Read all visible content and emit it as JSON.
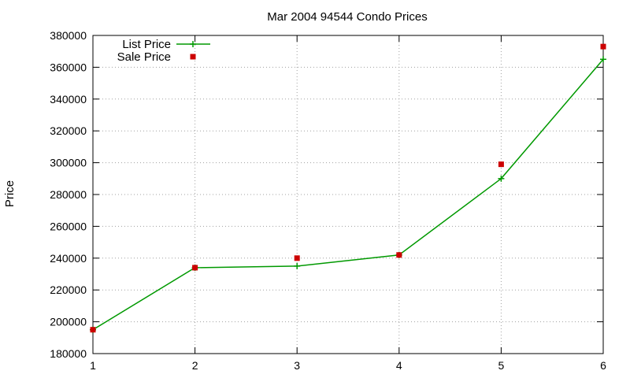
{
  "chart_data": {
    "type": "line",
    "title": "Mar 2004 94544 Condo Prices",
    "xlabel": "",
    "ylabel": "Price",
    "xlim": [
      1,
      6
    ],
    "ylim": [
      180000,
      380000
    ],
    "x_ticks": [
      "1",
      "2",
      "3",
      "4",
      "5",
      "6"
    ],
    "y_ticks": [
      "180000",
      "200000",
      "220000",
      "240000",
      "260000",
      "280000",
      "300000",
      "320000",
      "340000",
      "360000",
      "380000"
    ],
    "grid": true,
    "legend_position": "top-left",
    "series": [
      {
        "name": "List Price",
        "style": "line+cross",
        "color": "#009900",
        "points": [
          [
            1,
            195000
          ],
          [
            2,
            234000
          ],
          [
            3,
            235000
          ],
          [
            4,
            242000
          ],
          [
            5,
            290000
          ],
          [
            6,
            365000
          ]
        ]
      },
      {
        "name": "Sale Price",
        "style": "square",
        "color": "#cc0000",
        "points": [
          [
            1,
            195000
          ],
          [
            2,
            234000
          ],
          [
            3,
            240000
          ],
          [
            4,
            242000
          ],
          [
            5,
            299000
          ],
          [
            6,
            373000
          ]
        ]
      }
    ]
  }
}
